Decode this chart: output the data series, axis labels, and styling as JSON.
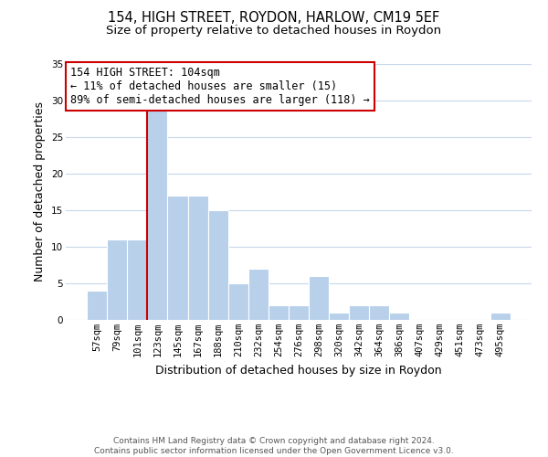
{
  "title": "154, HIGH STREET, ROYDON, HARLOW, CM19 5EF",
  "subtitle": "Size of property relative to detached houses in Roydon",
  "xlabel": "Distribution of detached houses by size in Roydon",
  "ylabel": "Number of detached properties",
  "bin_labels": [
    "57sqm",
    "79sqm",
    "101sqm",
    "123sqm",
    "145sqm",
    "167sqm",
    "188sqm",
    "210sqm",
    "232sqm",
    "254sqm",
    "276sqm",
    "298sqm",
    "320sqm",
    "342sqm",
    "364sqm",
    "386sqm",
    "407sqm",
    "429sqm",
    "451sqm",
    "473sqm",
    "495sqm"
  ],
  "bar_heights": [
    4,
    11,
    11,
    29,
    17,
    17,
    15,
    5,
    7,
    2,
    2,
    6,
    1,
    2,
    2,
    1,
    0,
    0,
    0,
    0,
    1
  ],
  "bar_color": "#b8d0ea",
  "ylim": [
    0,
    35
  ],
  "yticks": [
    0,
    5,
    10,
    15,
    20,
    25,
    30,
    35
  ],
  "property_line_idx": 2,
  "property_line_color": "#cc0000",
  "annotation_text": "154 HIGH STREET: 104sqm\n← 11% of detached houses are smaller (15)\n89% of semi-detached houses are larger (118) →",
  "annotation_box_color": "#ffffff",
  "annotation_box_edge": "#cc0000",
  "footer_line1": "Contains HM Land Registry data © Crown copyright and database right 2024.",
  "footer_line2": "Contains public sector information licensed under the Open Government Licence v3.0.",
  "background_color": "#ffffff",
  "grid_color": "#c8d8ec",
  "title_fontsize": 10.5,
  "subtitle_fontsize": 9.5,
  "xlabel_fontsize": 9,
  "ylabel_fontsize": 9,
  "tick_fontsize": 7.5,
  "annotation_fontsize": 8.5,
  "footer_fontsize": 6.5
}
